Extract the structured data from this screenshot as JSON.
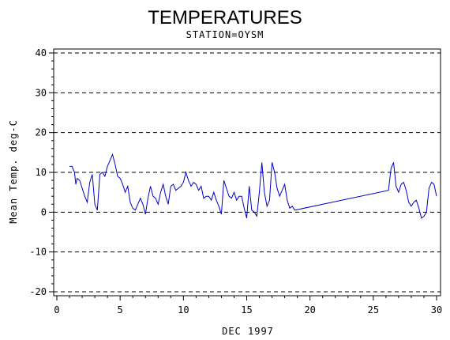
{
  "chart_data": {
    "type": "line",
    "title": "TEMPERATURES",
    "subtitle": "STATION=OYSM",
    "xlabel": "DEC 1997",
    "ylabel": "Mean Temp. deg-C",
    "xlim": [
      0,
      30
    ],
    "ylim": [
      -20,
      40
    ],
    "xticks": [
      0,
      5,
      10,
      15,
      20,
      25,
      30
    ],
    "yticks": [
      -20,
      -10,
      0,
      10,
      20,
      30,
      40
    ],
    "grid": "horizontal dashed",
    "line_color": "#0000cc",
    "series": [
      {
        "x": [
          1.0,
          1.2,
          1.4,
          1.5,
          1.6,
          1.8,
          2.0,
          2.2,
          2.4,
          2.6,
          2.8,
          3.0,
          3.2,
          3.4,
          3.6,
          3.8,
          4.0,
          4.2,
          4.4,
          4.6,
          4.8,
          5.0,
          5.2,
          5.4,
          5.6,
          5.8,
          6.0,
          6.2,
          6.4,
          6.6,
          6.8,
          7.0,
          7.2,
          7.4,
          7.6,
          7.8,
          8.0,
          8.2,
          8.4,
          8.6,
          8.8,
          9.0,
          9.2,
          9.4,
          9.6,
          9.8,
          10.0,
          10.2,
          10.4,
          10.6,
          10.8,
          11.0,
          11.2,
          11.4,
          11.6,
          11.8,
          12.0,
          12.2,
          12.4,
          12.6,
          12.8,
          13.0,
          13.2,
          13.4,
          13.6,
          13.8,
          14.0,
          14.2,
          14.4,
          14.6,
          14.8,
          15.0,
          15.2,
          15.4,
          15.6,
          15.8,
          16.0,
          16.2,
          16.4,
          16.6,
          16.8,
          17.0,
          17.2,
          17.4,
          17.6,
          17.8,
          18.0,
          18.2,
          18.4,
          18.6,
          18.8,
          26.2,
          26.4,
          26.6,
          26.8,
          27.0,
          27.2,
          27.4,
          27.6,
          27.8,
          28.0,
          28.2,
          28.4,
          28.6,
          28.8,
          29.0,
          29.2,
          29.4,
          29.6,
          29.8,
          30.0
        ],
        "values": [
          11.5,
          11.5,
          10.0,
          7.0,
          8.5,
          8.0,
          6.0,
          4.0,
          2.5,
          7.5,
          9.5,
          2.0,
          0.5,
          9.5,
          10.0,
          9.0,
          11.5,
          13.0,
          14.5,
          12.0,
          9.0,
          8.5,
          7.0,
          5.0,
          6.5,
          2.5,
          1.0,
          0.5,
          2.0,
          3.5,
          2.0,
          -0.5,
          3.5,
          6.5,
          4.0,
          3.5,
          2.0,
          5.0,
          7.0,
          4.0,
          2.0,
          6.5,
          7.0,
          5.5,
          6.0,
          6.5,
          7.5,
          10.0,
          8.0,
          6.5,
          7.5,
          7.0,
          5.5,
          6.5,
          3.5,
          4.0,
          4.0,
          3.0,
          5.0,
          3.0,
          1.5,
          -0.5,
          8.0,
          6.0,
          4.0,
          3.5,
          5.0,
          3.0,
          4.0,
          4.0,
          1.0,
          -1.5,
          6.5,
          0.5,
          0.0,
          -1.0,
          5.0,
          12.5,
          5.0,
          1.5,
          3.0,
          12.5,
          10.0,
          6.0,
          4.0,
          5.5,
          7.0,
          3.0,
          1.0,
          1.5,
          0.5,
          5.5,
          11.0,
          12.5,
          6.5,
          5.0,
          7.0,
          7.5,
          5.5,
          2.5,
          1.5,
          2.5,
          3.0,
          1.0,
          -1.5,
          -1.0,
          0.0,
          6.0,
          7.5,
          7.0,
          4.0
        ]
      }
    ]
  }
}
